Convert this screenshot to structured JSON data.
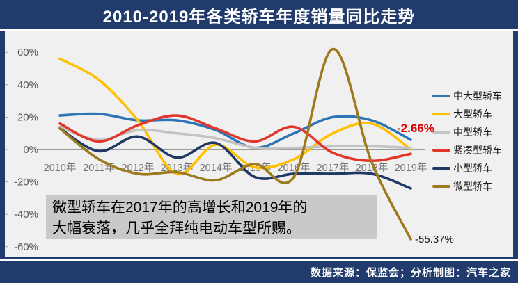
{
  "header": {
    "title": "2010-2019年各类轿车年度销量同比走势"
  },
  "footer": {
    "source_text": "数据来源：保监会；分析制图：汽车之家"
  },
  "annotation": {
    "line1": "微型轿车在2017年的高增长和2019年的",
    "line2": "大幅衰落，几乎全拜纯电动车型所赐。"
  },
  "chart_data": {
    "type": "line",
    "title": "2010-2019年各类轿车年度销量同比走势",
    "categories": [
      "2010年",
      "2011年",
      "2012年",
      "2013年",
      "2014年",
      "2015年",
      "2016年",
      "2017年",
      "2018年",
      "2019年"
    ],
    "series": [
      {
        "name": "中大型轿车",
        "color": "#2e75b6",
        "values": [
          21,
          22,
          18,
          18,
          12,
          1,
          10,
          20,
          18,
          6
        ]
      },
      {
        "name": "大型轿车",
        "color": "#ffc000",
        "values": [
          56,
          43,
          18,
          -15,
          3,
          -11,
          -6,
          10,
          16,
          0
        ]
      },
      {
        "name": "中型轿车",
        "color": "#c3c3c3",
        "values": [
          14,
          6,
          12,
          10,
          7,
          1,
          1,
          2,
          2,
          1
        ]
      },
      {
        "name": "紧凑型轿车",
        "color": "#e2352b",
        "values": [
          16,
          5,
          15,
          21,
          13,
          5,
          14,
          -2,
          -7,
          -2.66
        ]
      },
      {
        "name": "小型轿车",
        "color": "#1f3864",
        "values": [
          13,
          -1,
          8,
          -5,
          4,
          -17,
          -15,
          -15,
          -15,
          -24
        ]
      },
      {
        "name": "微型轿车",
        "color": "#9e7a1e",
        "values": [
          13,
          -6,
          -15,
          -14,
          -19,
          -9,
          -17,
          62,
          -8,
          -55.37
        ]
      }
    ],
    "ylim": [
      -60,
      60
    ],
    "ytick_labels": [
      "60%",
      "40%",
      "20%",
      "0%",
      "-20%",
      "-40%",
      "-60%"
    ],
    "ytick_values": [
      60,
      40,
      20,
      0,
      -20,
      -40,
      -60
    ],
    "xlabel": "",
    "ylabel": "",
    "grid": "zero-line-only",
    "legend_position": "right",
    "point_labels": [
      {
        "series": "紧凑型轿车",
        "year": "2019年",
        "label": "-2.66%"
      },
      {
        "series": "微型轿车",
        "year": "2019年",
        "label": "-55.37%"
      }
    ],
    "colors": {
      "frame": "#203b6c",
      "plot_bg": "#f0f0f0",
      "axis_line": "#7f7f7f",
      "tick_text": "#595959",
      "year_text": "#737373",
      "note_bg": "#c9c9c9"
    }
  }
}
